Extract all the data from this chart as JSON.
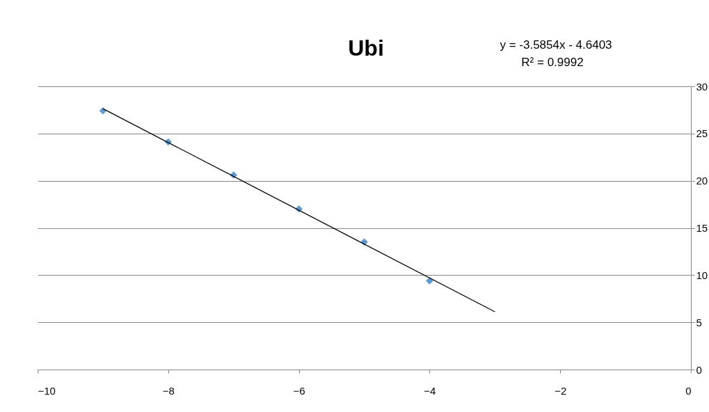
{
  "chart_data": {
    "type": "scatter",
    "title": "Ubi",
    "annotations": [
      "y = -3.5854x - 4.6403",
      "R² = 0.9992"
    ],
    "series": [
      {
        "color": "#5b9bd5",
        "marker": "diamond",
        "x": [
          -9,
          -8,
          -7,
          -6,
          -5,
          -4
        ],
        "values": [
          27.4,
          24.1,
          20.6,
          17.0,
          13.5,
          9.4
        ]
      },
      {
        "type": "line",
        "color": "#000000",
        "marker": "none",
        "x": [
          -9,
          -3
        ],
        "values": [
          27.63,
          6.12
        ]
      }
    ],
    "xlim": [
      -10,
      0
    ],
    "xticks": [
      -10,
      -8,
      -6,
      -4,
      -2,
      0
    ],
    "ylim": [
      0,
      30
    ],
    "yticks": [
      0,
      5,
      10,
      15,
      20,
      25,
      30
    ],
    "grid": "y"
  }
}
